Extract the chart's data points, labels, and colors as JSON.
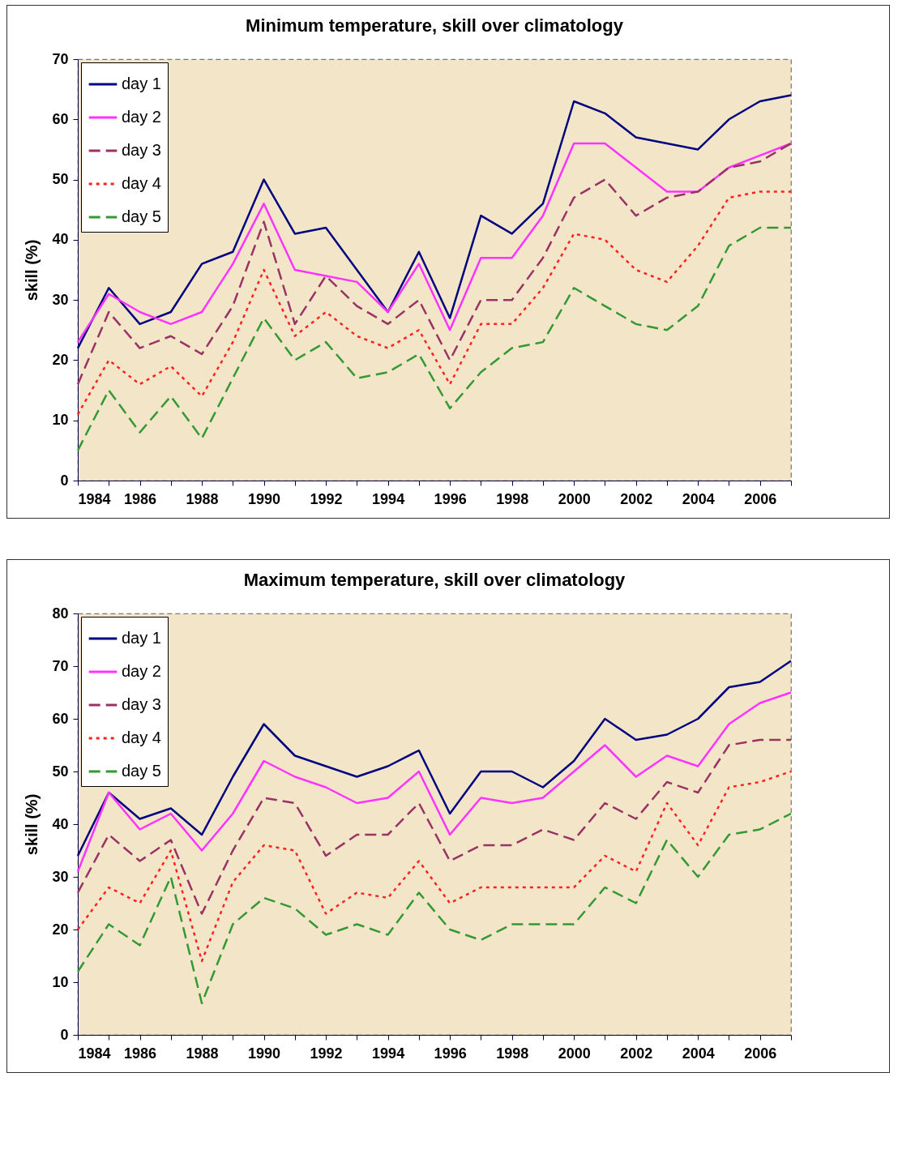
{
  "chart_data": [
    {
      "type": "line",
      "title": "Minimum temperature, skill over climatology",
      "ylabel": "skill (%)",
      "x": [
        1984,
        1985,
        1986,
        1987,
        1988,
        1989,
        1990,
        1991,
        1992,
        1993,
        1994,
        1995,
        1996,
        1997,
        1998,
        1999,
        2000,
        2001,
        2002,
        2003,
        2004,
        2005,
        2006,
        2007
      ],
      "series": [
        {
          "name": "day 1",
          "color": "#000080",
          "line_style": "solid",
          "values": [
            22,
            32,
            26,
            28,
            36,
            38,
            50,
            41,
            42,
            35,
            28,
            38,
            27,
            44,
            41,
            46,
            63,
            61,
            57,
            56,
            55,
            60,
            63,
            64
          ]
        },
        {
          "name": "day 2",
          "color": "#ff33ff",
          "line_style": "solid",
          "values": [
            23,
            31,
            28,
            26,
            28,
            36,
            46,
            35,
            34,
            33,
            28,
            36,
            25,
            37,
            37,
            44,
            56,
            56,
            52,
            48,
            48,
            52,
            54,
            56
          ]
        },
        {
          "name": "day 3",
          "color": "#993366",
          "line_style": "dashed",
          "values": [
            16,
            28,
            22,
            24,
            21,
            29,
            43,
            26,
            34,
            29,
            26,
            30,
            20,
            30,
            30,
            37,
            47,
            50,
            44,
            47,
            48,
            52,
            53,
            56
          ]
        },
        {
          "name": "day 4",
          "color": "#ff2020",
          "line_style": "dotted",
          "values": [
            11,
            20,
            16,
            19,
            14,
            23,
            35,
            24,
            28,
            24,
            22,
            25,
            16,
            26,
            26,
            32,
            41,
            40,
            35,
            33,
            39,
            47,
            48,
            48
          ]
        },
        {
          "name": "day 5",
          "color": "#339933",
          "line_style": "dashed",
          "values": [
            5,
            15,
            8,
            14,
            7,
            17,
            27,
            20,
            23,
            17,
            18,
            21,
            12,
            18,
            22,
            23,
            32,
            29,
            26,
            25,
            29,
            39,
            42,
            42
          ]
        }
      ],
      "xlim": [
        1984,
        2007
      ],
      "xticks": [
        1984,
        {
          "value": 1985,
          "label": null
        },
        1986,
        {
          "value": 1987,
          "label": null
        },
        1988,
        {
          "value": 1989,
          "label": null
        },
        1990,
        {
          "value": 1991,
          "label": null
        },
        1992,
        {
          "value": 1993,
          "label": null
        },
        1994,
        {
          "value": 1995,
          "label": null
        },
        1996,
        {
          "value": 1997,
          "label": null
        },
        1998,
        {
          "value": 1999,
          "label": null
        },
        2000,
        {
          "value": 2001,
          "label": null
        },
        2002,
        {
          "value": 2003,
          "label": null
        },
        2004,
        {
          "value": 2005,
          "label": null
        },
        2006,
        {
          "value": 2007,
          "label": null
        }
      ],
      "ylim": [
        0,
        70
      ],
      "yticks": [
        0,
        10,
        20,
        30,
        40,
        50,
        60,
        70
      ],
      "grid": false,
      "legend": "top left"
    },
    {
      "type": "line",
      "title": "Maximum temperature, skill over climatology",
      "ylabel": "skill (%)",
      "x": [
        1984,
        1985,
        1986,
        1987,
        1988,
        1989,
        1990,
        1991,
        1992,
        1993,
        1994,
        1995,
        1996,
        1997,
        1998,
        1999,
        2000,
        2001,
        2002,
        2003,
        2004,
        2005,
        2006,
        2007
      ],
      "series": [
        {
          "name": "day 1",
          "color": "#000080",
          "line_style": "solid",
          "values": [
            34,
            46,
            41,
            43,
            38,
            49,
            59,
            53,
            51,
            49,
            51,
            54,
            42,
            50,
            50,
            47,
            52,
            60,
            56,
            57,
            60,
            66,
            67,
            71
          ]
        },
        {
          "name": "day 2",
          "color": "#ff33ff",
          "line_style": "solid",
          "values": [
            31,
            46,
            39,
            42,
            35,
            42,
            52,
            49,
            47,
            44,
            45,
            50,
            38,
            45,
            44,
            45,
            50,
            55,
            49,
            53,
            51,
            59,
            63,
            65
          ]
        },
        {
          "name": "day 3",
          "color": "#993366",
          "line_style": "dashed",
          "values": [
            27,
            38,
            33,
            37,
            23,
            35,
            45,
            44,
            34,
            38,
            38,
            44,
            33,
            36,
            36,
            39,
            37,
            44,
            41,
            48,
            46,
            55,
            56,
            56
          ]
        },
        {
          "name": "day 4",
          "color": "#ff2020",
          "line_style": "dotted",
          "values": [
            20,
            28,
            25,
            35,
            14,
            29,
            36,
            35,
            23,
            27,
            26,
            33,
            25,
            28,
            28,
            28,
            28,
            34,
            31,
            44,
            36,
            47,
            48,
            50
          ]
        },
        {
          "name": "day 5",
          "color": "#339933",
          "line_style": "dashed",
          "values": [
            12,
            21,
            17,
            30,
            6,
            21,
            26,
            24,
            19,
            21,
            19,
            27,
            20,
            18,
            21,
            21,
            21,
            28,
            25,
            37,
            30,
            38,
            39,
            42
          ]
        }
      ],
      "xlim": [
        1984,
        2007
      ],
      "xticks": [
        1984,
        {
          "value": 1985,
          "label": null
        },
        1986,
        {
          "value": 1987,
          "label": null
        },
        1988,
        {
          "value": 1989,
          "label": null
        },
        1990,
        {
          "value": 1991,
          "label": null
        },
        1992,
        {
          "value": 1993,
          "label": null
        },
        1994,
        {
          "value": 1995,
          "label": null
        },
        1996,
        {
          "value": 1997,
          "label": null
        },
        1998,
        {
          "value": 1999,
          "label": null
        },
        2000,
        {
          "value": 2001,
          "label": null
        },
        2002,
        {
          "value": 2003,
          "label": null
        },
        2004,
        {
          "value": 2005,
          "label": null
        },
        2006,
        {
          "value": 2007,
          "label": null
        }
      ],
      "ylim": [
        0,
        80
      ],
      "yticks": [
        0,
        10,
        20,
        30,
        40,
        50,
        60,
        70,
        80
      ],
      "grid": false,
      "legend": "top left"
    }
  ]
}
